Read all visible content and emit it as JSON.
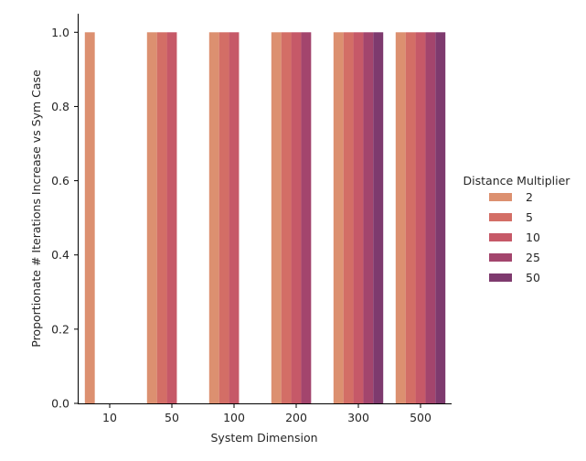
{
  "chart_data": {
    "type": "bar",
    "title": "",
    "xlabel": "System Dimension",
    "ylabel": "Proportionate # Iterations Increase vs Sym Case",
    "categories": [
      "10",
      "50",
      "100",
      "200",
      "300",
      "500"
    ],
    "ylim": [
      0,
      1.05
    ],
    "yticks": [
      "0.0",
      "0.2",
      "0.4",
      "0.6",
      "0.8",
      "1.0"
    ],
    "grid": false,
    "legend": {
      "title": "Distance Multiplier",
      "placement": "right"
    },
    "series": [
      {
        "name": "2",
        "color": "#dc9070",
        "values": [
          1.0,
          1.0,
          1.0,
          1.0,
          1.0,
          1.0
        ]
      },
      {
        "name": "5",
        "color": "#d36e66",
        "values": [
          0,
          1.0,
          1.0,
          1.0,
          1.0,
          1.0
        ]
      },
      {
        "name": "10",
        "color": "#c65968",
        "values": [
          0,
          1.0,
          1.0,
          1.0,
          1.0,
          1.0
        ]
      },
      {
        "name": "25",
        "color": "#a3456d",
        "values": [
          0,
          0,
          0,
          1.0,
          1.0,
          1.0
        ]
      },
      {
        "name": "50",
        "color": "#7e3a6e",
        "values": [
          0,
          0,
          0,
          0,
          1.0,
          1.0
        ]
      }
    ]
  }
}
